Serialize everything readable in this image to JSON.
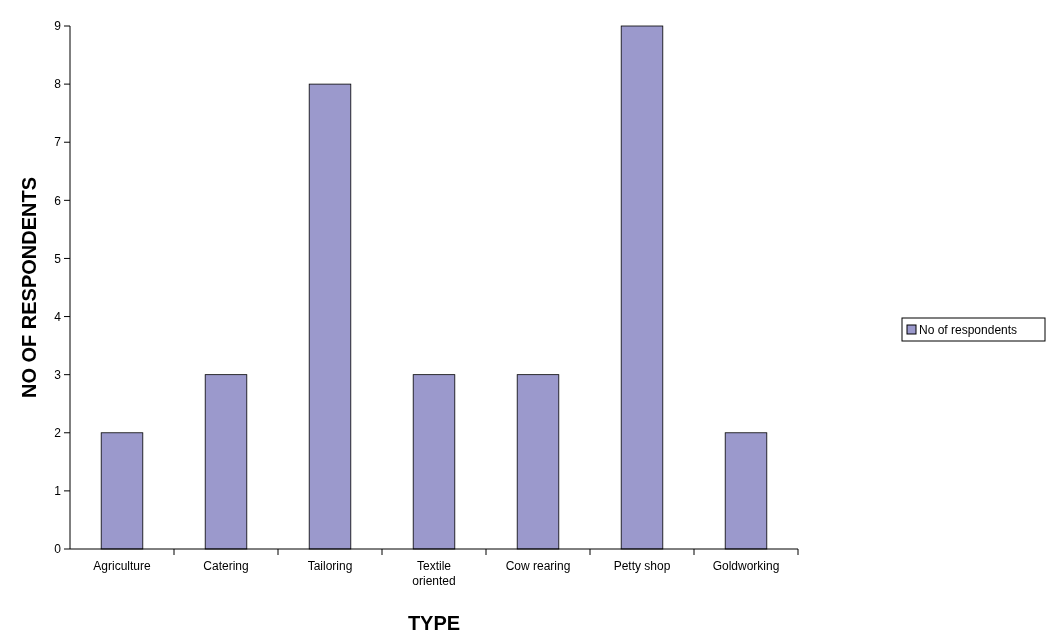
{
  "chart_data": {
    "type": "bar",
    "xlabel": "TYPE",
    "ylabel": "NO OF RESPONDENTS",
    "categories": [
      "Agriculture",
      "Catering",
      "Tailoring",
      "Textile oriented",
      "Cow rearing",
      "Petty shop",
      "Goldworking"
    ],
    "series": [
      {
        "name": "No of respondents",
        "color": "#9b99cc",
        "values": [
          2,
          3,
          8,
          3,
          3,
          9,
          2
        ]
      }
    ],
    "ylim": [
      0,
      9
    ],
    "yticks": [
      0,
      1,
      2,
      3,
      4,
      5,
      6,
      7,
      8,
      9
    ],
    "grid": false,
    "legend": "right"
  }
}
